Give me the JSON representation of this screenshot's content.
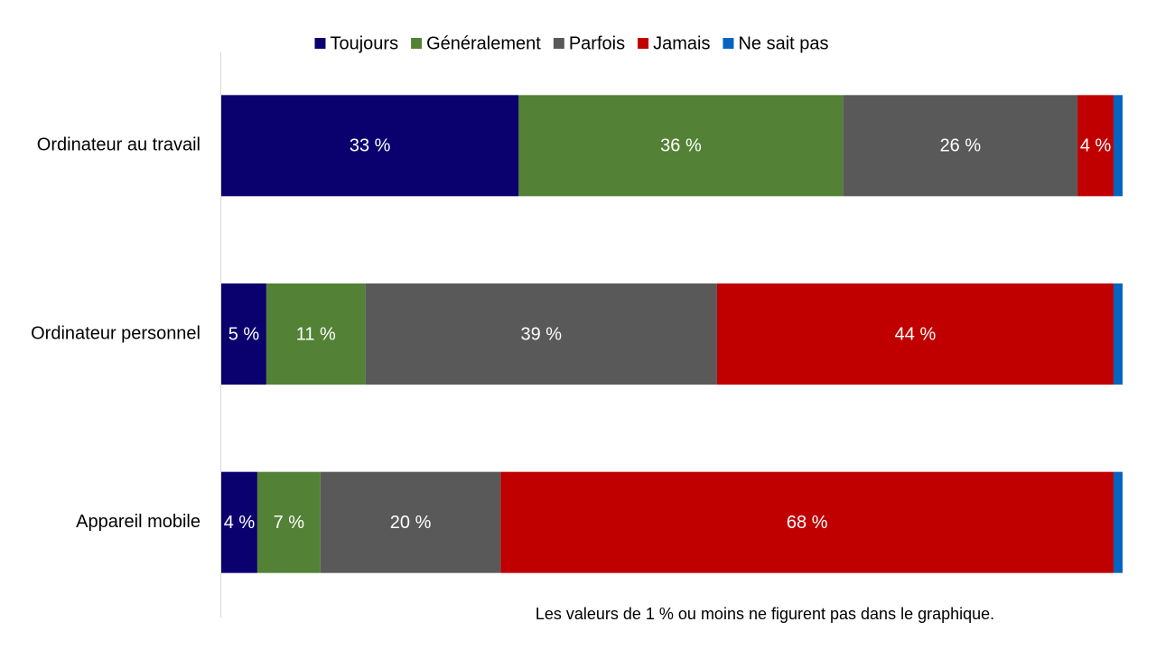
{
  "chart_data": {
    "type": "stacked-barh",
    "categories": [
      "Ordinateur au travail",
      "Ordinateur personnel",
      "Appareil mobile"
    ],
    "series": [
      {
        "name": "Toujours",
        "color": "#0a006e",
        "values": [
          33,
          5,
          4
        ],
        "value_labels": [
          "33 %",
          "5 %",
          "4 %"
        ]
      },
      {
        "name": "Généralement",
        "color": "#538135",
        "values": [
          36,
          11,
          7
        ],
        "value_labels": [
          "36 %",
          "11 %",
          "7 %"
        ]
      },
      {
        "name": "Parfois",
        "color": "#595959",
        "values": [
          26,
          39,
          20
        ],
        "value_labels": [
          "26 %",
          "39 %",
          "20 %"
        ]
      },
      {
        "name": "Jamais",
        "color": "#c00000",
        "values": [
          4,
          44,
          68
        ],
        "value_labels": [
          "4 %",
          "44 %",
          "68 %"
        ]
      },
      {
        "name": "Ne sait pas",
        "color": "#0563c1",
        "values": [
          1,
          1,
          1
        ],
        "value_labels": [
          null,
          null,
          null
        ]
      }
    ],
    "xlim": [
      0,
      100
    ],
    "legend": "top",
    "note": "Les valeurs de 1 % ou moins ne figurent pas dans le graphique."
  }
}
